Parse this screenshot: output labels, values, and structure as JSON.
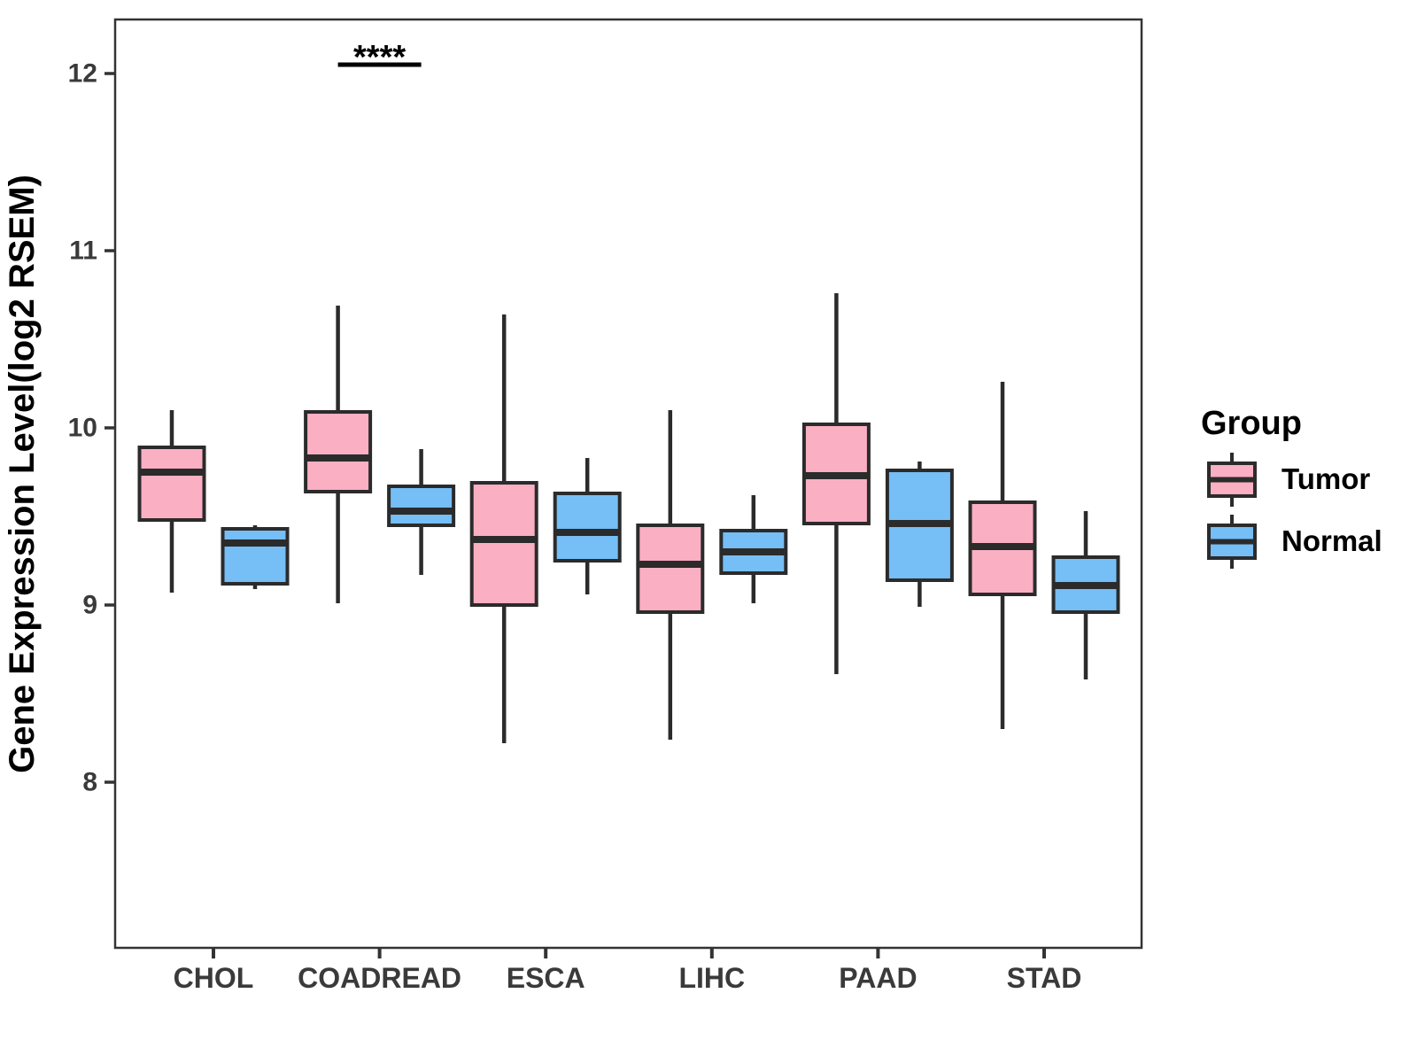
{
  "figure": {
    "background": "#ffffff"
  },
  "y_axis": {
    "label": "Gene Expression Level(log2 RSEM)",
    "ticks": [
      12,
      11,
      10,
      9,
      8
    ]
  },
  "legend": {
    "title": "Group",
    "entries": [
      {
        "label": "Tumor",
        "color": "#FBAFC3"
      },
      {
        "label": "Normal",
        "color": "#75BEF6"
      }
    ]
  },
  "colors": {
    "tumor_fill": "#FBAFC3",
    "normal_fill": "#75BEF6",
    "box_stroke": "#2B2B2B",
    "axis_line": "#333333",
    "tick_text": "#3A3A3A",
    "black_text": "#000000"
  },
  "chart_data": {
    "type": "boxplot",
    "title": "",
    "xlabel": "",
    "ylabel": "Gene Expression Level(log2 RSEM)",
    "ylim": [
      7.05,
      12.3
    ],
    "yticks": [
      8,
      9,
      10,
      11,
      12
    ],
    "grid": false,
    "legend_position": "right",
    "categories": [
      "CHOL",
      "COADREAD",
      "ESCA",
      "LIHC",
      "PAAD",
      "STAD"
    ],
    "series": [
      {
        "name": "Tumor",
        "color": "#FBAFC3",
        "boxes": [
          {
            "low": 9.07,
            "q1": 9.48,
            "median": 9.75,
            "q3": 9.89,
            "high": 10.1
          },
          {
            "low": 9.01,
            "q1": 9.64,
            "median": 9.83,
            "q3": 10.09,
            "high": 10.69
          },
          {
            "low": 8.22,
            "q1": 9.0,
            "median": 9.37,
            "q3": 9.69,
            "high": 10.64
          },
          {
            "low": 8.24,
            "q1": 8.96,
            "median": 9.23,
            "q3": 9.45,
            "high": 10.1
          },
          {
            "low": 8.61,
            "q1": 9.46,
            "median": 9.73,
            "q3": 10.02,
            "high": 10.76
          },
          {
            "low": 8.3,
            "q1": 9.06,
            "median": 9.33,
            "q3": 9.58,
            "high": 10.26
          }
        ]
      },
      {
        "name": "Normal",
        "color": "#75BEF6",
        "boxes": [
          {
            "low": 9.09,
            "q1": 9.12,
            "median": 9.35,
            "q3": 9.43,
            "high": 9.45
          },
          {
            "low": 9.17,
            "q1": 9.45,
            "median": 9.53,
            "q3": 9.67,
            "high": 9.88
          },
          {
            "low": 9.06,
            "q1": 9.25,
            "median": 9.41,
            "q3": 9.63,
            "high": 9.83
          },
          {
            "low": 9.01,
            "q1": 9.18,
            "median": 9.3,
            "q3": 9.42,
            "high": 9.62
          },
          {
            "low": 8.99,
            "q1": 9.14,
            "median": 9.46,
            "q3": 9.76,
            "high": 9.81
          },
          {
            "low": 8.58,
            "q1": 8.96,
            "median": 9.11,
            "q3": 9.27,
            "high": 9.53
          }
        ]
      }
    ],
    "annotations": [
      {
        "label": "****",
        "category": "COADREAD",
        "between": [
          "Tumor",
          "Normal"
        ],
        "y": 12.05
      }
    ]
  }
}
